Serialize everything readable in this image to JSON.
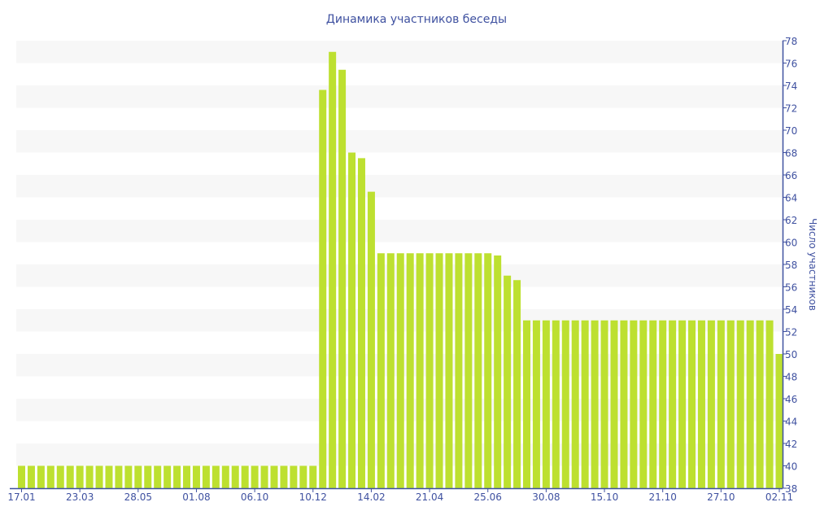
{
  "chart_data": {
    "type": "bar",
    "title": "Динамика участников беседы",
    "xlabel": "",
    "ylabel": "Число участников",
    "ylim": [
      38,
      78
    ],
    "ytick_step": 2,
    "grid": "alternating horizontal bands",
    "y_axis_side": "right",
    "colors": {
      "bar": "#bde030",
      "band": "#f7f7f7",
      "axis": "#3f51a0",
      "text": "#3f51a0"
    },
    "x_tick_labels": [
      "17.01",
      "23.03",
      "28.05",
      "01.08",
      "06.10",
      "10.12",
      "14.02",
      "21.04",
      "25.06",
      "30.08",
      "15.10",
      "21.10",
      "27.10",
      "02.11"
    ],
    "x_tick_every": 6,
    "values": [
      40,
      40,
      40,
      40,
      40,
      40,
      40,
      40,
      40,
      40,
      40,
      40,
      40,
      40,
      40,
      40,
      40,
      40,
      40,
      40,
      40,
      40,
      40,
      40,
      40,
      40,
      40,
      40,
      40,
      40,
      40,
      73.6,
      77,
      75.4,
      68,
      67.5,
      64.5,
      59,
      59,
      59,
      59,
      59,
      59,
      59,
      59,
      59,
      59,
      59,
      59,
      58.8,
      57,
      56.6,
      53,
      53,
      53,
      53,
      53,
      53,
      53,
      53,
      53,
      53,
      53,
      53,
      53,
      53,
      53,
      53,
      53,
      53,
      53,
      53,
      53,
      53,
      53,
      53,
      53,
      53,
      50
    ]
  }
}
